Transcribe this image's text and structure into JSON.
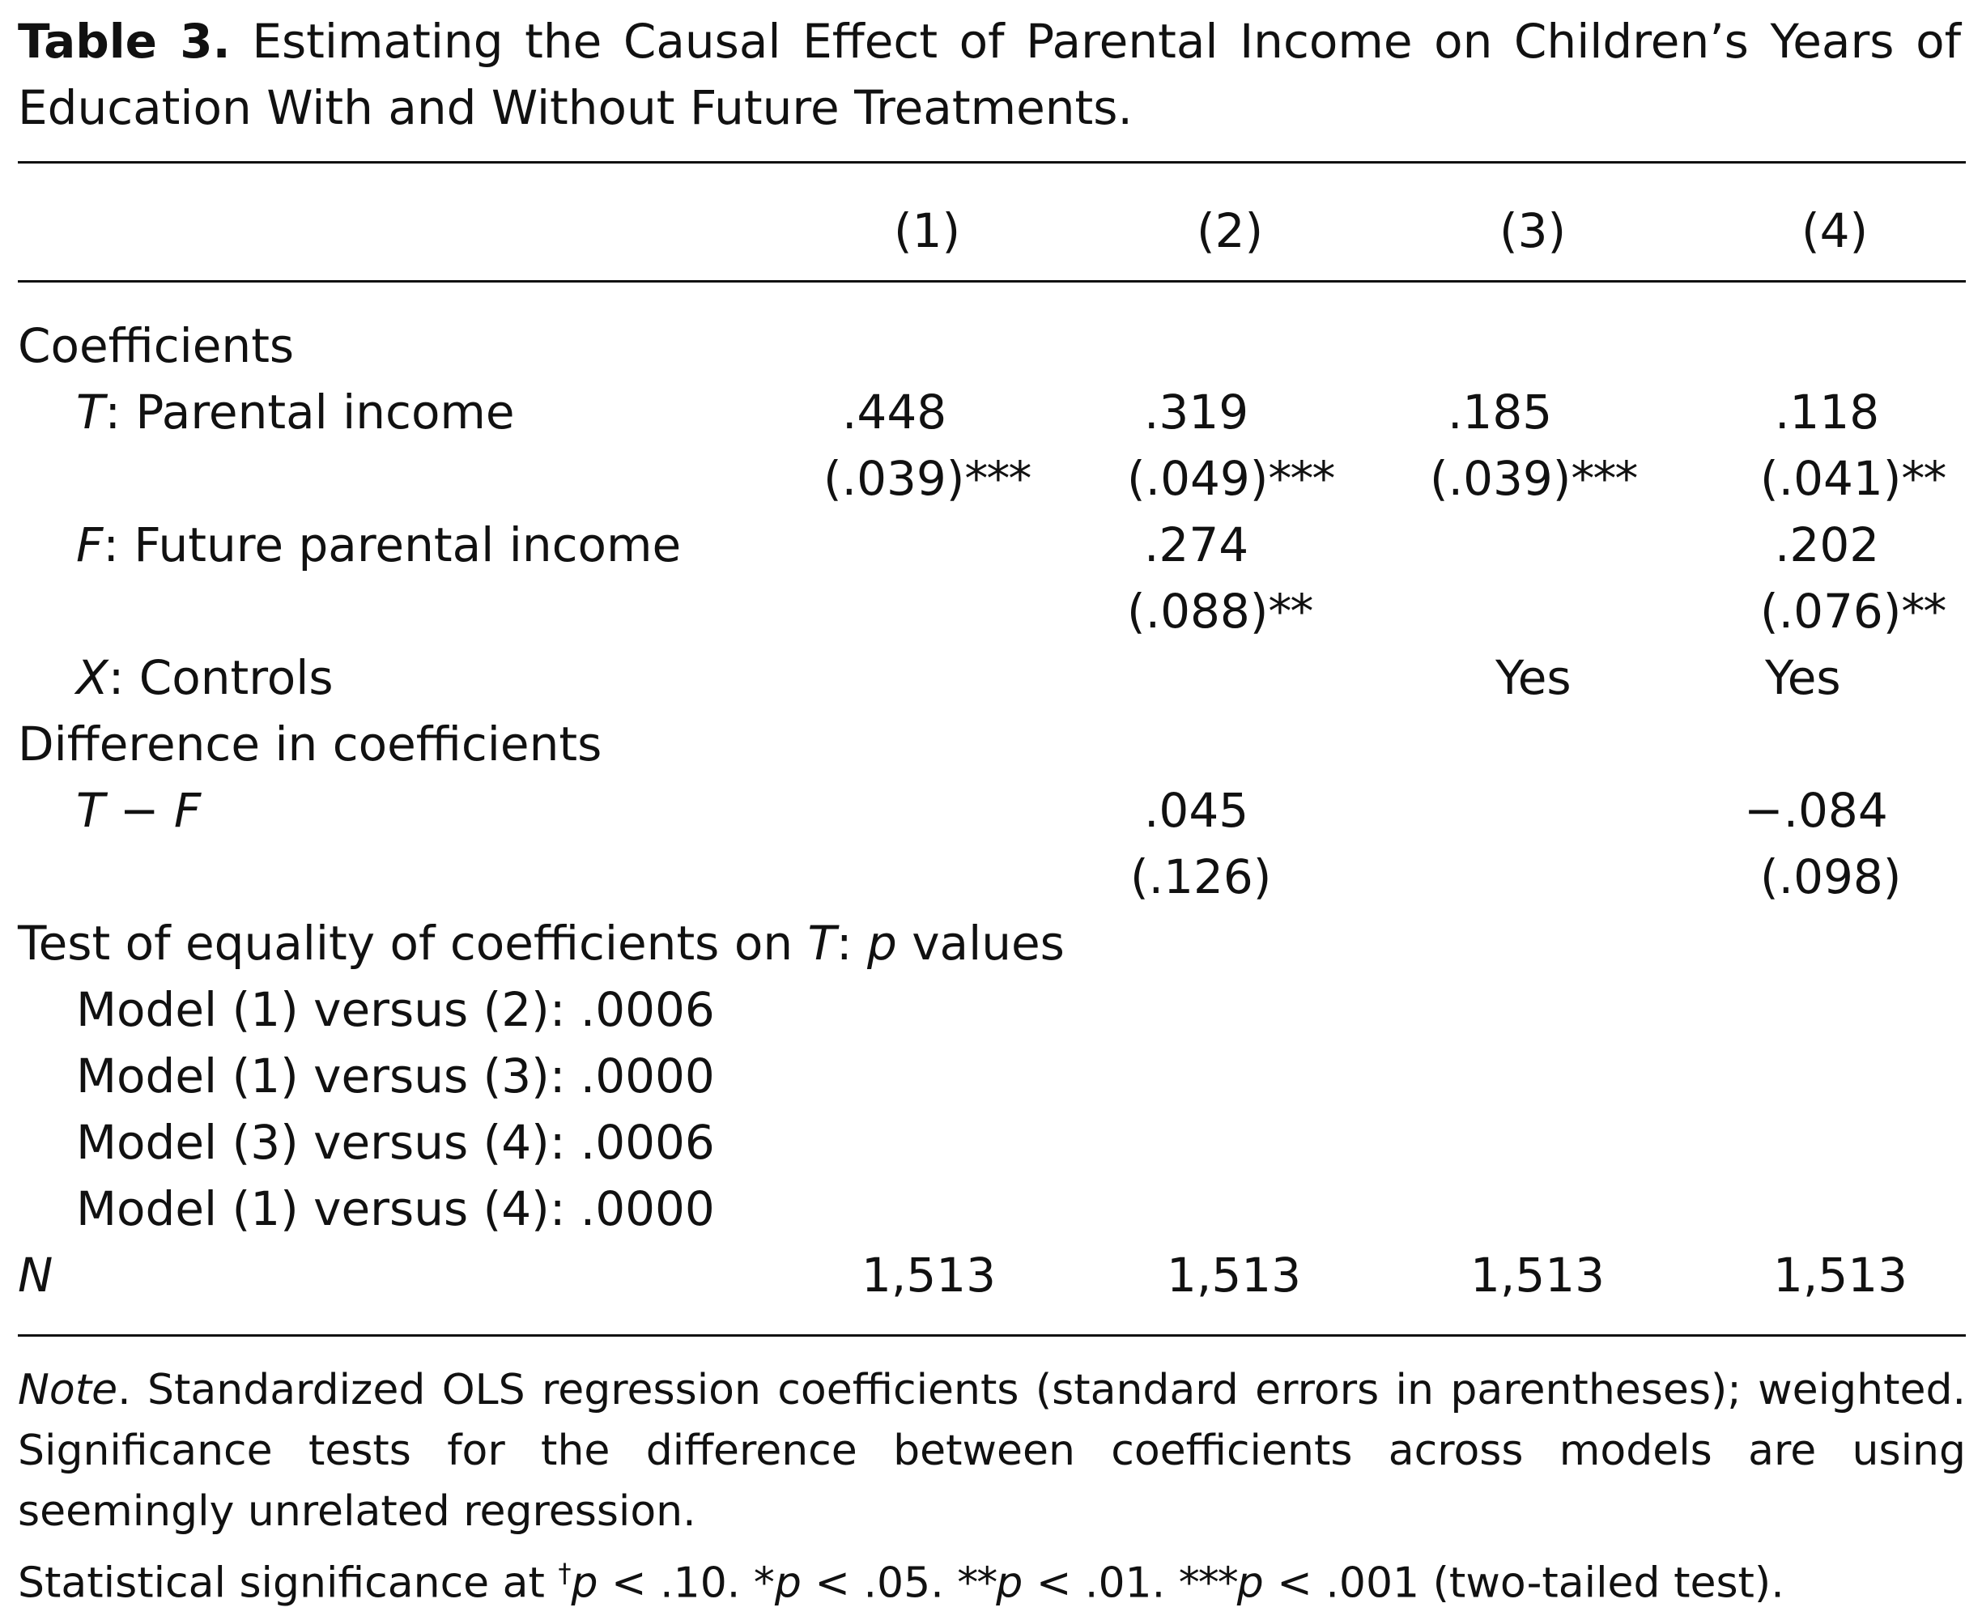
{
  "caption": {
    "label": "Table 3.",
    "text": "Estimating the Causal Effect of Parental Income on Children’s Years of Education With and Without Future Treatments."
  },
  "columns": [
    "(1)",
    "(2)",
    "(3)",
    "(4)"
  ],
  "sections": {
    "coefficients": "Coefficients",
    "difference": "Difference in coefficients",
    "test": {
      "prefix": "Test of equality of coefficients on ",
      "var": "T",
      "mid": ": ",
      "p": "p",
      "suffix": " values"
    }
  },
  "rows": {
    "t": {
      "var": "T",
      "label": ": Parental income",
      "est": [
        ".448",
        ".319",
        ".185",
        ".118"
      ],
      "se": [
        "(.039)",
        "(.049)",
        "(.039)",
        "(.041)"
      ],
      "sig": [
        "***",
        "***",
        "***",
        "**"
      ]
    },
    "f": {
      "var": "F",
      "label": ": Future parental income",
      "est2": ".274",
      "se2": "(.088)",
      "sig2": "**",
      "est4": ".202",
      "se4": "(.076)",
      "sig4": "**"
    },
    "x": {
      "var": "X",
      "label": ": Controls",
      "c3": "Yes",
      "c4": "Yes"
    },
    "diff": {
      "label": "T − F",
      "est2": ".045",
      "se2": "(.126)",
      "est4": "−.084",
      "se4": "(.098)"
    },
    "tests": [
      "Model (1) versus (2): .0006",
      "Model (1) versus (3): .0000",
      "Model (3) versus (4): .0006",
      "Model (1) versus (4): .0000"
    ],
    "n": {
      "label": "N",
      "values": [
        "1,513",
        "1,513",
        "1,513",
        "1,513"
      ]
    }
  },
  "note": {
    "lead": "Note",
    "text": ". Standardized OLS regression coefficients (standard errors in parentheses); weighted. Significance tests for the difference between coefficients across models are using seemingly unrelated regression."
  },
  "significance": {
    "prefix": "Statistical significance at ",
    "dagger": "†",
    "d_text": " < .10. ",
    "s1": "*",
    "s1_text": " < .05. ",
    "s2": "**",
    "s2_text": " < .01. ",
    "s3": "***",
    "s3_text": " < .001 (two-tailed test).",
    "p": "p"
  }
}
